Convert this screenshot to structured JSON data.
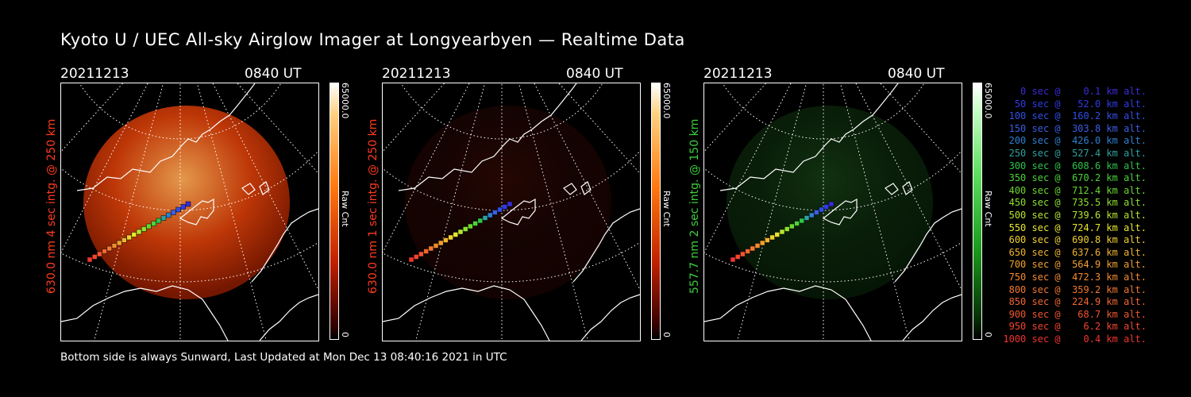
{
  "title": "Kyoto U / UEC All-sky Airglow Imager at Longyearbyen — Realtime Data",
  "footer": "Bottom side is always Sunward, Last Updated at Mon Dec 13 08:40:16 2021 in UTC",
  "panels": [
    {
      "date": "20211213",
      "time": "0840 UT",
      "side_label": "630.0 nm 4 sec intg. @ 250 km",
      "side_color": "#ff3b1f",
      "cbar_max": "65000.0",
      "cbar_min": "0",
      "cbar_unit": "Raw Cnt",
      "tone": "red-bright",
      "image_level": 0.95
    },
    {
      "date": "20211213",
      "time": "0840 UT",
      "side_label": "630.0 nm 1 sec intg. @ 250 km",
      "side_color": "#ff3b1f",
      "cbar_max": "65000.0",
      "cbar_min": "0",
      "cbar_unit": "Raw Cnt",
      "tone": "red-dim",
      "image_level": 0.35
    },
    {
      "date": "20211213",
      "time": "0840 UT",
      "side_label": "557.7 nm 2 sec intg. @ 150 km",
      "side_color": "#3ccf3c",
      "cbar_max": "65000.0",
      "cbar_min": "0",
      "cbar_unit": "Raw Cnt",
      "tone": "green",
      "image_level": 0.4
    }
  ],
  "legend": [
    {
      "text": "   0 sec @    0.1 km alt.",
      "color": "#3b2bd8"
    },
    {
      "text": "  50 sec @   52.0 km alt.",
      "color": "#2f3be6"
    },
    {
      "text": " 100 sec @  160.2 km alt.",
      "color": "#2f4fe6"
    },
    {
      "text": " 150 sec @  303.8 km alt.",
      "color": "#3b5ee6"
    },
    {
      "text": " 200 sec @  426.0 km alt.",
      "color": "#2f7fd0"
    },
    {
      "text": " 250 sec @  527.4 km alt.",
      "color": "#2fa0a0"
    },
    {
      "text": " 300 sec @  608.6 km alt.",
      "color": "#2fc24a"
    },
    {
      "text": " 350 sec @  670.2 km alt.",
      "color": "#4cd33a"
    },
    {
      "text": " 400 sec @  712.4 km alt.",
      "color": "#6ad62f"
    },
    {
      "text": " 450 sec @  735.5 km alt.",
      "color": "#8ee02f"
    },
    {
      "text": " 500 sec @  739.6 km alt.",
      "color": "#b6e62f"
    },
    {
      "text": " 550 sec @  724.7 km alt.",
      "color": "#e6e62f"
    },
    {
      "text": " 600 sec @  690.8 km alt.",
      "color": "#f2d12f"
    },
    {
      "text": " 650 sec @  637.6 km alt.",
      "color": "#f2b42f"
    },
    {
      "text": " 700 sec @  564.9 km alt.",
      "color": "#f2a02f"
    },
    {
      "text": " 750 sec @  472.3 km alt.",
      "color": "#f28a2f"
    },
    {
      "text": " 800 sec @  359.2 km alt.",
      "color": "#f2782f"
    },
    {
      "text": " 850 sec @  224.9 km alt.",
      "color": "#f2662f"
    },
    {
      "text": " 900 sec @   68.7 km alt.",
      "color": "#f2552f"
    },
    {
      "text": " 950 sec @    6.2 km alt.",
      "color": "#f2442f"
    },
    {
      "text": "1000 sec @    0.4 km alt.",
      "color": "#f2332f"
    }
  ]
}
